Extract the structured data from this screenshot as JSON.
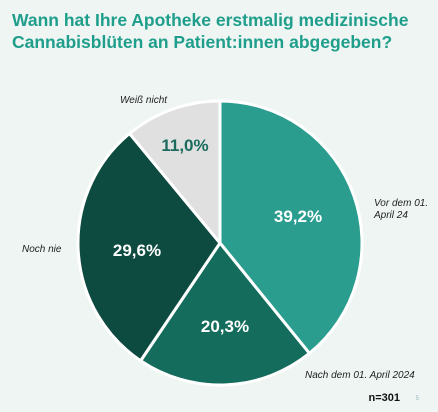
{
  "title_lines": [
    "Wann hat Ihre Apotheke erstmalig medizinische",
    "Cannabisblüten an Patient:innen abgegeben?"
  ],
  "chart_data": {
    "type": "pie",
    "title": "Wann hat Ihre Apotheke erstmalig medizinische Cannabisblüten an Patient:innen abgegeben?",
    "slices": [
      {
        "label": "Vor dem 01. April 24",
        "value": 39.2,
        "display": "39,2%",
        "color": "#2a9d8f",
        "text_color": "#ffffff"
      },
      {
        "label": "Nach dem 01. April 2024",
        "value": 20.3,
        "display": "20,3%",
        "color": "#146c5c",
        "text_color": "#ffffff"
      },
      {
        "label": "Noch nie",
        "value": 29.6,
        "display": "29,6%",
        "color": "#0d4a3f",
        "text_color": "#ffffff"
      },
      {
        "label": "Weiß nicht",
        "value": 11.0,
        "display": "11,0%",
        "color": "#e0e0e0",
        "text_color": "#1a6b5e"
      }
    ],
    "start_angle": "12 o'clock",
    "direction": "clockwise"
  },
  "footer": {
    "n": "n=301",
    "page": "5"
  }
}
